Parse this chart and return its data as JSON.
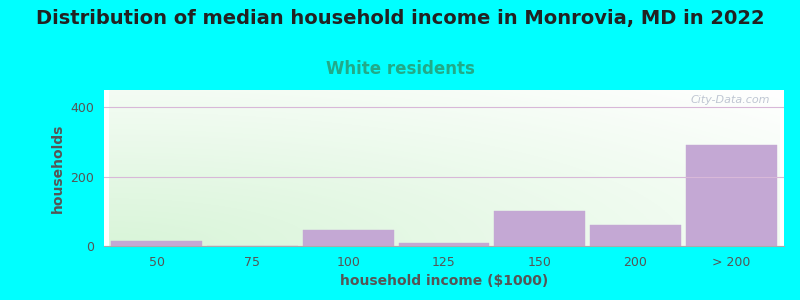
{
  "title": "Distribution of median household income in Monrovia, MD in 2022",
  "subtitle": "White residents",
  "xlabel": "household income ($1000)",
  "ylabel": "households",
  "background_color": "#00FFFF",
  "bar_color": "#C4A8D4",
  "categories": [
    "50",
    "75",
    "100",
    "125",
    "150",
    "200",
    "> 200"
  ],
  "values": [
    15,
    0,
    45,
    10,
    100,
    60,
    290
  ],
  "ylim": [
    0,
    450
  ],
  "yticks": [
    0,
    200,
    400
  ],
  "title_fontsize": 14,
  "subtitle_fontsize": 12,
  "subtitle_color": "#22AA88",
  "axis_label_fontsize": 10,
  "tick_fontsize": 9,
  "text_color": "#555555",
  "ylabel_color": "#555555",
  "watermark": "City-Data.com",
  "grid_color": "#D8B8D8"
}
